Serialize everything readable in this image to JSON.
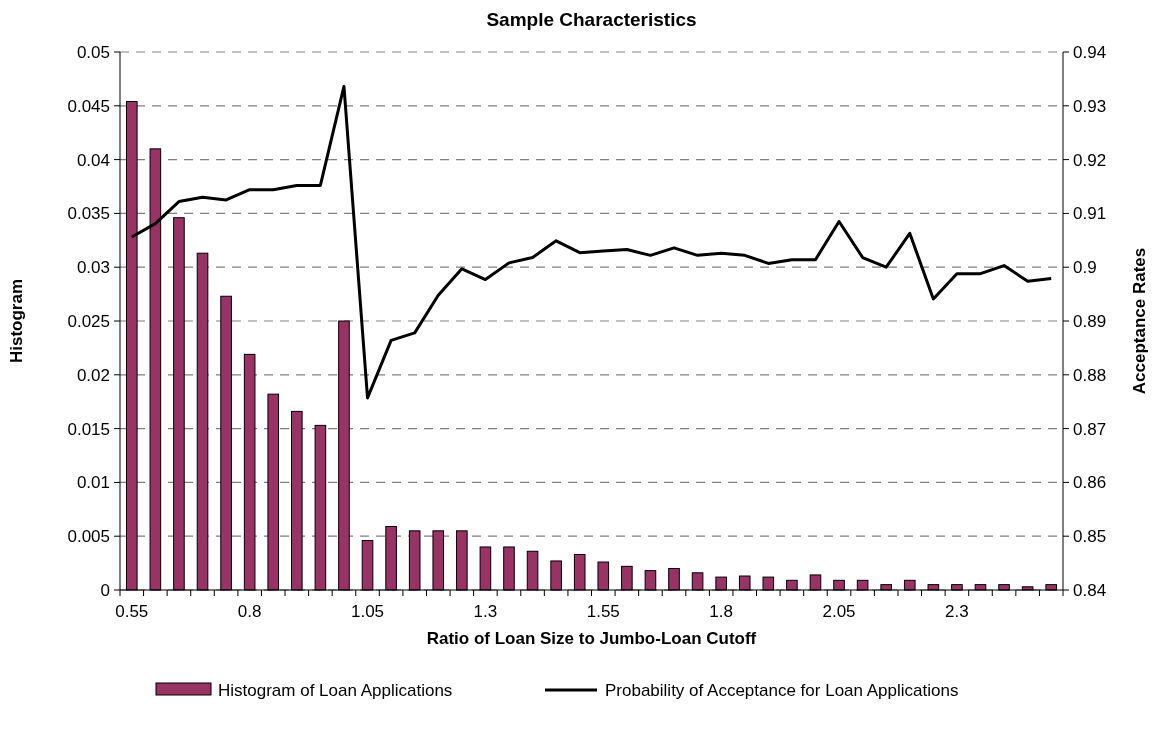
{
  "chart_data": {
    "type": "bar",
    "title": "Sample Characteristics",
    "xlabel": "Ratio of Loan Size to Jumbo-Loan Cutoff",
    "ylabel": "Histogram",
    "y2label": "Acceptance Rates",
    "categories": [
      "0.55",
      null,
      null,
      null,
      null,
      "0.8",
      null,
      null,
      null,
      null,
      "1.05",
      null,
      null,
      null,
      null,
      "1.3",
      null,
      null,
      null,
      null,
      "1.55",
      null,
      null,
      null,
      null,
      "1.8",
      null,
      null,
      null,
      null,
      "2.05",
      null,
      null,
      null,
      null,
      "2.3",
      null,
      null,
      null,
      null
    ],
    "series": [
      {
        "name": "Histogram of Loan Applications",
        "color": "#993366",
        "values": [
          0.0454,
          0.041,
          0.0346,
          0.0313,
          0.0273,
          0.0219,
          0.0182,
          0.0166,
          0.0153,
          0.025,
          0.0046,
          0.0059,
          0.0055,
          0.0055,
          0.0055,
          0.004,
          0.004,
          0.0036,
          0.0027,
          0.0033,
          0.0026,
          0.0022,
          0.0018,
          0.002,
          0.0016,
          0.0012,
          0.0013,
          0.0012,
          0.0009,
          0.0014,
          0.0009,
          0.0009,
          0.0005,
          0.0009,
          0.0005,
          0.0005,
          0.0005,
          0.0005,
          0.0003,
          0.0005
        ]
      },
      {
        "name": "Probability of Acceptance for Loan Applications",
        "type": "line",
        "axis": "y2",
        "color": "#000000",
        "values": [
          0.9056,
          0.9081,
          0.9122,
          0.913,
          0.9125,
          0.9144,
          0.9144,
          0.9152,
          0.9152,
          0.9336,
          0.8757,
          0.8864,
          0.8878,
          0.8948,
          0.8997,
          0.8977,
          0.9008,
          0.9018,
          0.9049,
          0.9027,
          0.903,
          0.9033,
          0.9022,
          0.9036,
          0.9022,
          0.9026,
          0.9022,
          0.9007,
          0.9014,
          0.9014,
          0.9085,
          0.9018,
          0.9,
          0.9063,
          0.8941,
          0.8988,
          0.8988,
          0.9003,
          0.8974,
          0.8979
        ]
      }
    ],
    "ylim": [
      0,
      0.05
    ],
    "yticks": [
      0,
      0.005,
      0.01,
      0.015,
      0.02,
      0.025,
      0.03,
      0.035,
      0.04,
      0.045,
      0.05
    ],
    "y2lim": [
      0.84,
      0.94
    ],
    "y2ticks": [
      0.84,
      0.85,
      0.86,
      0.87,
      0.88,
      0.89,
      0.9,
      0.91,
      0.92,
      0.93,
      0.94
    ],
    "grid": "y",
    "legend": "bottom",
    "marker": "none",
    "line_style": "solid"
  }
}
